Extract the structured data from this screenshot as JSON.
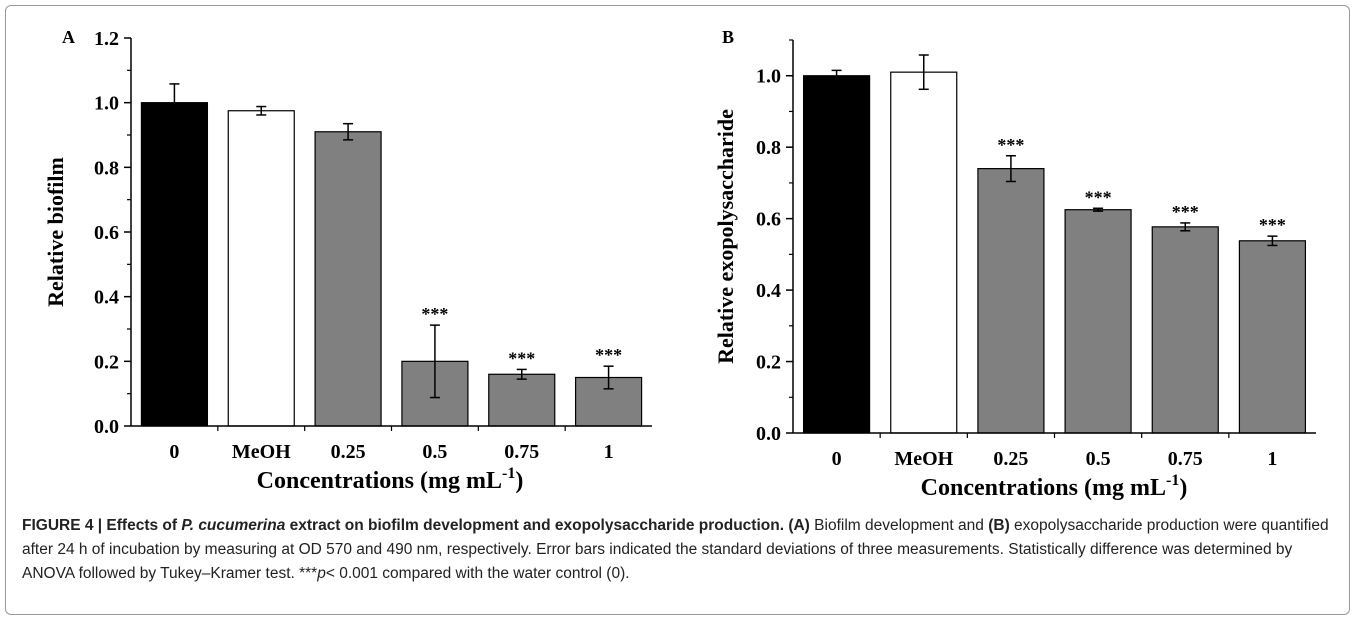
{
  "chart_data": [
    {
      "panel_label": "A",
      "type": "bar",
      "categories": [
        "0",
        "MeOH",
        "0.25",
        "0.5",
        "0.75",
        "1"
      ],
      "values": [
        1.0,
        0.975,
        0.91,
        0.2,
        0.16,
        0.15
      ],
      "errors": [
        0.058,
        0.013,
        0.025,
        0.112,
        0.015,
        0.035
      ],
      "annotations": [
        "",
        "",
        "",
        "***",
        "***",
        "***"
      ],
      "bar_colors": [
        "#000000",
        "#ffffff",
        "#808080",
        "#808080",
        "#808080",
        "#808080"
      ],
      "ylabel": "Relative biofilm",
      "xlabel_main": "Concentrations (mg mL",
      "xlabel_sup": "-1",
      "xlabel_end": ")",
      "ylim": [
        0,
        1.2
      ],
      "yticks": [
        "0.0",
        "0.2",
        "0.4",
        "0.6",
        "0.8",
        "1.0",
        "1.2"
      ]
    },
    {
      "panel_label": "B",
      "type": "bar",
      "categories": [
        "0",
        "MeOH",
        "0.25",
        "0.5",
        "0.75",
        "1"
      ],
      "values": [
        1.0,
        1.01,
        0.74,
        0.625,
        0.577,
        0.538
      ],
      "errors": [
        0.015,
        0.048,
        0.036,
        0.004,
        0.011,
        0.013
      ],
      "annotations": [
        "",
        "",
        "***",
        "***",
        "***",
        "***"
      ],
      "bar_colors": [
        "#000000",
        "#ffffff",
        "#808080",
        "#808080",
        "#808080",
        "#808080"
      ],
      "ylabel": "Relative exopolysaccharide",
      "xlabel_main": "Concentrations (mg mL",
      "xlabel_sup": "-1",
      "xlabel_end": ")",
      "ylim": [
        0,
        1.1
      ],
      "yticks": [
        "0.0",
        "0.2",
        "0.4",
        "0.6",
        "0.8",
        "1.0"
      ]
    }
  ],
  "caption": {
    "title_a": "FIGURE 4 | Effects of ",
    "title_species": "P. cucumerina",
    "title_b": " extract on biofilm development and exopolysaccharide production.",
    "panel_a": "(A)",
    "text_a": " Biofilm development and ",
    "panel_b": "(B)",
    "text_b": " exopolysaccharide production were quantified after 24 h of incubation by measuring at OD 570 and 490 nm, respectively. Error bars indicated the standard deviations of three measurements. Statistically difference was determined by ANOVA followed by Tukey–Kramer test. ***",
    "p_symbol": "p",
    "text_c": "< 0.001 compared with the water control (0)."
  }
}
